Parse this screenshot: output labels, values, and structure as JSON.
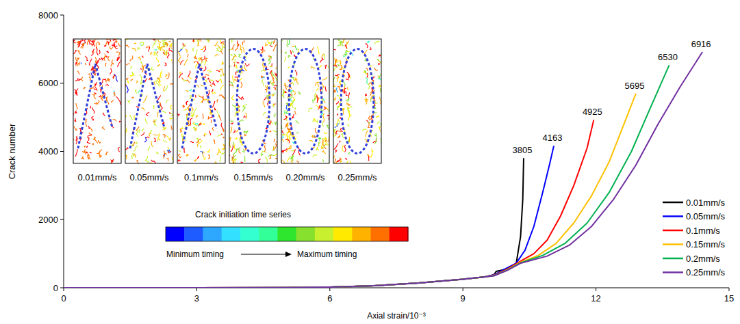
{
  "chart_data": {
    "type": "line",
    "x_label": "Axial strain/10⁻³",
    "y_label": "Crack number",
    "xlim": [
      0,
      15
    ],
    "ylim": [
      0,
      8000
    ],
    "xticks": [
      0,
      3,
      6,
      9,
      12,
      15
    ],
    "yticks": [
      0,
      2000,
      4000,
      6000,
      8000
    ],
    "grid": false,
    "legend": "lower right",
    "series": [
      {
        "name": "0.01mm/s",
        "color": "#000000",
        "end_label": "3805",
        "x": [
          0,
          3,
          5,
          6,
          7,
          8,
          9,
          9.5,
          9.7,
          9.75,
          10.0,
          10.2,
          10.3,
          10.35,
          10.37
        ],
        "values": [
          0,
          0,
          5,
          20,
          60,
          140,
          250,
          320,
          380,
          480,
          550,
          700,
          1500,
          2600,
          3805
        ]
      },
      {
        "name": "0.05mm/s",
        "color": "#0000FF",
        "end_label": "4163",
        "x": [
          0,
          3,
          5,
          6,
          7,
          8,
          9,
          9.5,
          9.7,
          9.9,
          10.2,
          10.4,
          10.6,
          10.8,
          10.95,
          11.05
        ],
        "values": [
          0,
          0,
          5,
          20,
          60,
          140,
          250,
          320,
          380,
          520,
          720,
          1100,
          1800,
          2800,
          3600,
          4163
        ]
      },
      {
        "name": "0.1mm/s",
        "color": "#FF0000",
        "end_label": "4925",
        "x": [
          0,
          3,
          5,
          6,
          7,
          8,
          9,
          9.5,
          9.7,
          10.0,
          10.3,
          10.6,
          10.9,
          11.2,
          11.5,
          11.8,
          11.95
        ],
        "values": [
          0,
          0,
          5,
          20,
          60,
          140,
          250,
          320,
          370,
          550,
          780,
          1000,
          1400,
          2100,
          3000,
          4100,
          4925
        ]
      },
      {
        "name": "0.15mm/s",
        "color": "#FFC000",
        "end_label": "5695",
        "x": [
          0,
          3,
          5,
          6,
          7,
          8,
          9,
          9.5,
          9.7,
          10.0,
          10.3,
          10.7,
          11.1,
          11.5,
          11.9,
          12.3,
          12.6,
          12.9
        ],
        "values": [
          0,
          0,
          5,
          20,
          60,
          140,
          250,
          320,
          360,
          530,
          750,
          950,
          1300,
          1900,
          2700,
          3700,
          4700,
          5695
        ]
      },
      {
        "name": "0.2mm/s",
        "color": "#00B050",
        "end_label": "6530",
        "x": [
          0,
          3,
          5,
          6,
          7,
          8,
          9,
          9.5,
          9.7,
          10.0,
          10.3,
          10.8,
          11.3,
          11.8,
          12.3,
          12.8,
          13.2,
          13.65
        ],
        "values": [
          0,
          0,
          5,
          20,
          60,
          140,
          250,
          320,
          355,
          520,
          730,
          950,
          1300,
          1900,
          2800,
          4000,
          5200,
          6530
        ]
      },
      {
        "name": "0.25mm/s",
        "color": "#7030A0",
        "end_label": "6916",
        "x": [
          0,
          3,
          5,
          6,
          7,
          8,
          9,
          9.5,
          9.7,
          10.0,
          10.3,
          10.9,
          11.4,
          11.9,
          12.4,
          12.9,
          13.4,
          13.9,
          14.4
        ],
        "values": [
          0,
          0,
          5,
          20,
          60,
          140,
          250,
          320,
          350,
          510,
          720,
          930,
          1250,
          1800,
          2600,
          3600,
          4800,
          5900,
          6916
        ]
      }
    ],
    "panels": [
      {
        "label": "0.01mm/s",
        "shape": "triangle"
      },
      {
        "label": "0.05mm/s",
        "shape": "triangle"
      },
      {
        "label": "0.1mm/s",
        "shape": "triangle"
      },
      {
        "label": "0.15mm/s",
        "shape": "ellipse"
      },
      {
        "label": "0.20mm/s",
        "shape": "ellipse"
      },
      {
        "label": "0.25mm/s",
        "shape": "ellipse"
      }
    ],
    "colorbar": {
      "title": "Crack initiation time series",
      "colors": [
        "#0000FF",
        "#1E5CFF",
        "#2EA8FF",
        "#33E0FF",
        "#33FFD0",
        "#33FF99",
        "#2EE62E",
        "#88E02E",
        "#C8F02E",
        "#FFEA00",
        "#FFB300",
        "#FF7000",
        "#FF0000"
      ],
      "min_label": "Minimum timing",
      "max_label": "Maximum timing"
    }
  }
}
